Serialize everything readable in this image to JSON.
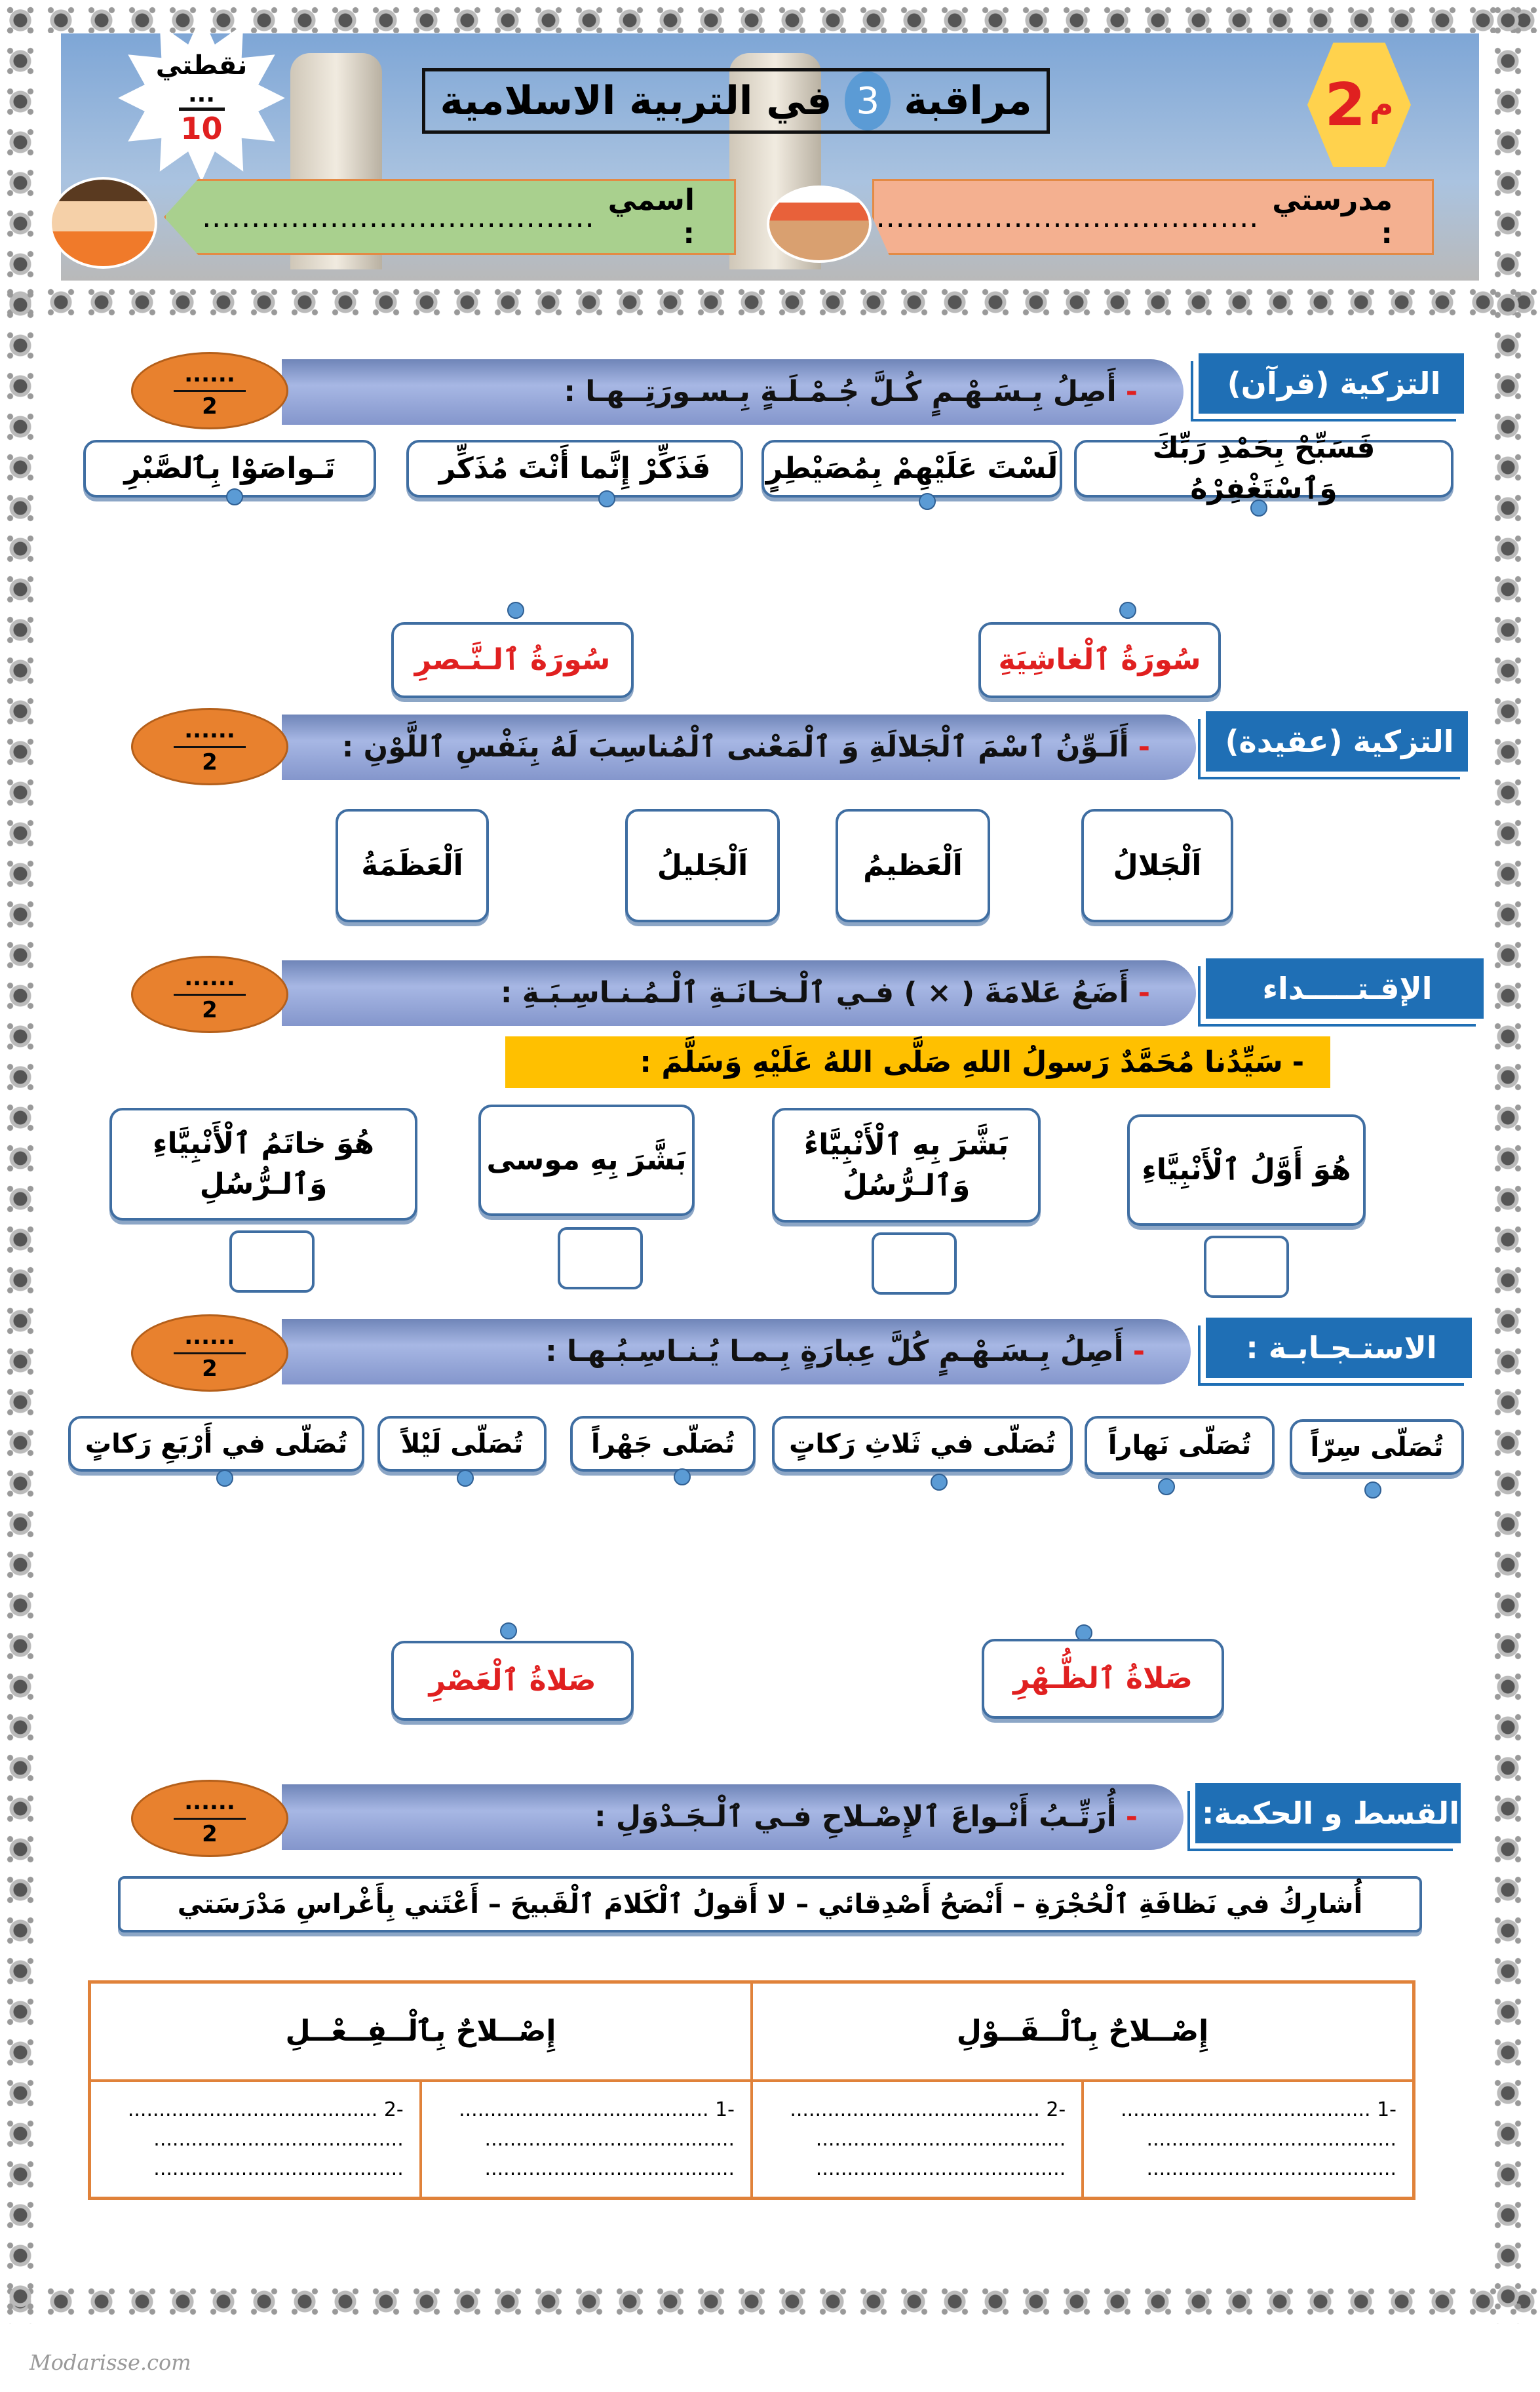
{
  "header": {
    "title_part1": "مراقبة",
    "title_number": "3",
    "title_part2": "في التربية الاسلامية",
    "level_number": "2",
    "level_letter": "م",
    "score_label": "نقطتي",
    "score_blank": "...",
    "score_total": "10",
    "school_label": "مدرستي :",
    "school_blank": "........................................",
    "name_label": "اسمي :",
    "name_blank": "........................................"
  },
  "sections": [
    {
      "label": "التزكية (قرآن)",
      "instruction": "أَصِلُ بِـسَـهْـمٍ كُـلَّ جُـمْـلَـةٍ بِـسـورَتِــهـا :",
      "points": "2",
      "blank": "......",
      "options": [
        "فَسَبِّحْ بِحَمْدِ رَبِّكَ وَٱسْتَغْفِرْهُ",
        "لَسْتَ عَلَيْهِمْ بِمُصَيْطِرٍ",
        "فَذَكِّرْ إِنَّما أَنْتَ مُذَكِّر",
        "تَـواصَوْا بِٱلصَّبْرِ"
      ],
      "targets": [
        "سُورَةُ ٱلْغاشِيَةِ",
        "سُورَةُ ٱلـنَّـصرِ"
      ]
    },
    {
      "label": "التزكية (عقيدة)",
      "instruction": "أَلَـوِّنُ ٱسْمَ ٱلْجَلالَةِ وَ ٱلْمَعْنى ٱلْمُناسِبَ لَهُ بِنَفْسِ ٱللَّوْنِ :",
      "points": "2",
      "blank": "......",
      "options": [
        "اَلْجَلالُ",
        "اَلْعَظيمُ",
        "اَلْجَليلُ",
        "اَلْعَظَمَةُ"
      ]
    },
    {
      "label": "الإقـتـــــداء",
      "instruction": "أَضَعُ عَلامَةَ ( × ) فـي ٱلْـخـانَـةِ ٱلْـمُـنـاسِـبَـةِ :",
      "mark": "×",
      "points": "2",
      "blank": "......",
      "statement": "سَيِّدُنا مُحَمَّدٌ رَسولُ اللهِ صَلَّى اللهُ عَلَيْهِ وَسَلَّمَ :",
      "options": [
        "هُوَ أَوَّلُ ٱلْأَنْبِيَّاءِ",
        "بَشَّرَ بِهِ ٱلْأَنْبِيَّاءُ وَٱلـرُّسُلُ",
        "بَشَّرَ بِهِ موسى",
        "هُوَ خاتَمُ ٱلْأَنْبِيَّاءِ وَٱلـرُّسُلِ"
      ]
    },
    {
      "label": "الاستـجـابـة :",
      "instruction": "أَصِلُ بِـسَـهْـمٍ كُلَّ عِبارَةٍ بِـمـا يُـنـاسِـبُـهـا :",
      "points": "2",
      "blank": "......",
      "options": [
        "تُصَلّى سِرّاً",
        "تُصَلّى نَهاراً",
        "تُصَلّى في ثَلاثِ رَكاتٍ",
        "تُصَلّى جَهْراً",
        "تُصَلّى لَيْلاً",
        "تُصَلّى في أَرْبَعِ رَكاتٍ"
      ],
      "targets": [
        "صَلاةُ ٱلظُّـهْرِ",
        "صَلاةُ ٱلْعَصْرِ"
      ]
    },
    {
      "label": "القسط و الحكمة:",
      "instruction": "أُرَتِّـبُ أَنْـواعَ ٱلإِصْـلاحِ فـي ٱلْـجَـدْوَلِ :",
      "points": "2",
      "blank": "......",
      "phrase": "أُشارِكُ في نَظافَةِ ٱلْحُجْرَةِ – أَنْصَحُ أَصْدِقائي – لا أَقولُ ٱلْكَلامَ ٱلْقَبيحَ – أَعْتَني بِأَغْراسِ مَدْرَسَتي",
      "table": {
        "headers": [
          "إِصْــلاحٌ بِٱلْــقَــوْلِ",
          "إِصْــلاحٌ بِٱلْــفِــعْــلِ"
        ],
        "cells": [
          "-1 ........................................",
          "-2 ........................................",
          "-1 ........................................",
          "-2 ........................................"
        ],
        "lines": "........................................"
      }
    }
  ],
  "footer": "Modarisse.com",
  "colors": {
    "label_blue": "#1f6fb5",
    "oval_orange": "#e8812e",
    "highlight_yellow": "#ffc000",
    "table_border": "#e0823a",
    "answer_red": "#e02020"
  }
}
